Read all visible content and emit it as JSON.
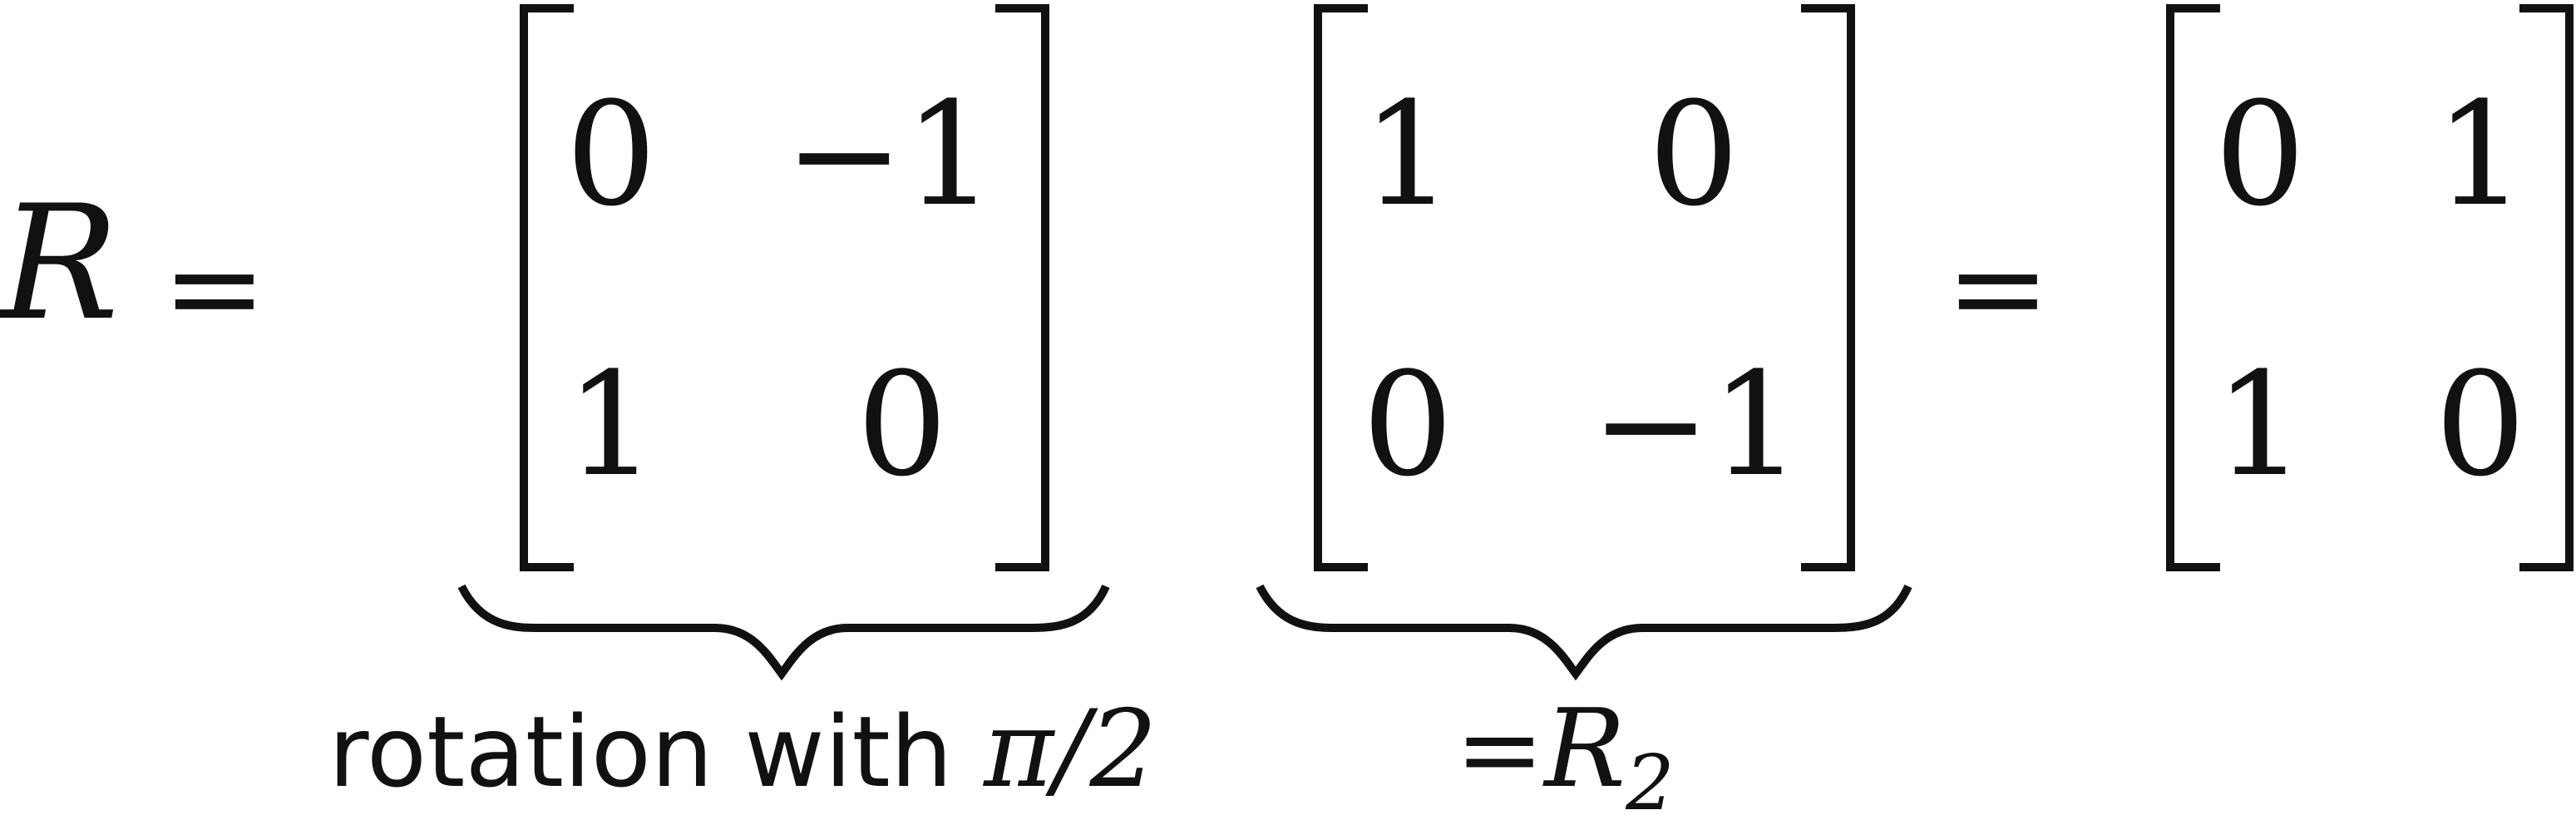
{
  "equation": {
    "lhs": "R",
    "equals": "=",
    "matrix_a": {
      "rows": [
        [
          "0",
          "−1"
        ],
        [
          "1",
          "0"
        ]
      ],
      "annotation": {
        "text": "rotation with ",
        "symbol": "π",
        "suffix": "/2"
      }
    },
    "matrix_b": {
      "rows": [
        [
          "1",
          "0"
        ],
        [
          "0",
          "−1"
        ]
      ],
      "annotation": {
        "prefix": "=",
        "symbol": "R",
        "subscript": "2"
      }
    },
    "equals_2": "=",
    "matrix_c": {
      "rows": [
        [
          "0",
          "1"
        ],
        [
          "1",
          "0"
        ]
      ]
    }
  }
}
